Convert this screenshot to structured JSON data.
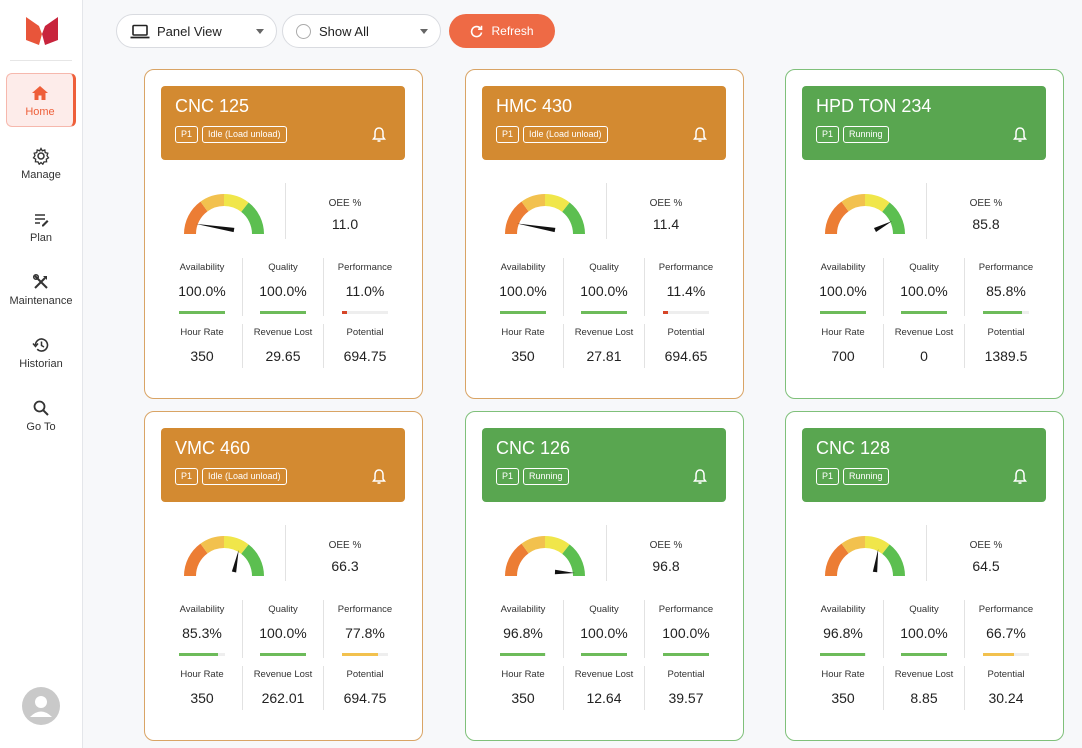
{
  "nav": [
    {
      "label": "Home",
      "icon": "home-icon",
      "active": true
    },
    {
      "label": "Manage",
      "icon": "gear-icon",
      "active": false
    },
    {
      "label": "Plan",
      "icon": "plan-icon",
      "active": false
    },
    {
      "label": "Maintenance",
      "icon": "tools-icon",
      "active": false
    },
    {
      "label": "Historian",
      "icon": "history-icon",
      "active": false
    },
    {
      "label": "Go To",
      "icon": "search-icon",
      "active": false
    }
  ],
  "toolbar": {
    "view_label": "Panel View",
    "filter_label": "Show All",
    "refresh_label": "Refresh"
  },
  "colors": {
    "idle": "#d38a31",
    "running": "#59a650",
    "accent": "#ee6a45",
    "bar_green": "#6dbb5a",
    "bar_red": "#d64528",
    "bar_yellow": "#f2c14e"
  },
  "labels": {
    "oee": "OEE %",
    "availability": "Availability",
    "quality": "Quality",
    "performance": "Performance",
    "hour_rate": "Hour Rate",
    "revenue_lost": "Revenue Lost",
    "potential": "Potential"
  },
  "machines": [
    {
      "name": "CNC 125",
      "priority": "P1",
      "status": "Idle (Load unload)",
      "state": "idle",
      "oee": "11.0",
      "oee_value": 11.0,
      "availability": "100.0%",
      "availability_value": 100.0,
      "quality": "100.0%",
      "quality_value": 100.0,
      "performance": "11.0%",
      "performance_value": 11.0,
      "hour_rate": "350",
      "revenue_lost": "29.65",
      "potential": "694.75"
    },
    {
      "name": "HMC 430",
      "priority": "P1",
      "status": "Idle (Load unload)",
      "state": "idle",
      "oee": "11.4",
      "oee_value": 11.4,
      "availability": "100.0%",
      "availability_value": 100.0,
      "quality": "100.0%",
      "quality_value": 100.0,
      "performance": "11.4%",
      "performance_value": 11.4,
      "hour_rate": "350",
      "revenue_lost": "27.81",
      "potential": "694.65"
    },
    {
      "name": "HPD TON 234",
      "priority": "P1",
      "status": "Running",
      "state": "running",
      "oee": "85.8",
      "oee_value": 85.8,
      "availability": "100.0%",
      "availability_value": 100.0,
      "quality": "100.0%",
      "quality_value": 100.0,
      "performance": "85.8%",
      "performance_value": 85.8,
      "hour_rate": "700",
      "revenue_lost": "0",
      "potential": "1389.5"
    },
    {
      "name": "VMC 460",
      "priority": "P1",
      "status": "Idle (Load unload)",
      "state": "idle",
      "oee": "66.3",
      "oee_value": 66.3,
      "availability": "85.3%",
      "availability_value": 85.3,
      "quality": "100.0%",
      "quality_value": 100.0,
      "performance": "77.8%",
      "performance_value": 77.8,
      "hour_rate": "350",
      "revenue_lost": "262.01",
      "potential": "694.75"
    },
    {
      "name": "CNC 126",
      "priority": "P1",
      "status": "Running",
      "state": "running",
      "oee": "96.8",
      "oee_value": 96.8,
      "availability": "96.8%",
      "availability_value": 96.8,
      "quality": "100.0%",
      "quality_value": 100.0,
      "performance": "100.0%",
      "performance_value": 100.0,
      "hour_rate": "350",
      "revenue_lost": "12.64",
      "potential": "39.57"
    },
    {
      "name": "CNC 128",
      "priority": "P1",
      "status": "Running",
      "state": "running",
      "oee": "64.5",
      "oee_value": 64.5,
      "availability": "96.8%",
      "availability_value": 96.8,
      "quality": "100.0%",
      "quality_value": 100.0,
      "performance": "66.7%",
      "performance_value": 66.7,
      "hour_rate": "350",
      "revenue_lost": "8.85",
      "potential": "30.24"
    }
  ]
}
